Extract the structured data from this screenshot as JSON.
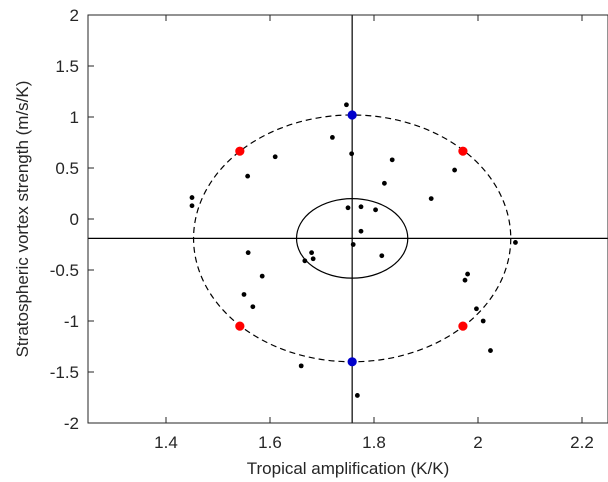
{
  "chart_data": {
    "type": "scatter",
    "title": "",
    "xlabel": "Tropical amplification (K/K)",
    "ylabel": "Stratospheric vortex strength (m/s/K)",
    "xlim": [
      1.25,
      2.25
    ],
    "ylim": [
      -2,
      2
    ],
    "xticks": [
      1.4,
      1.6,
      1.8,
      2,
      2.2
    ],
    "xtick_labels": [
      "1.4",
      "1.6",
      "1.8",
      "2",
      "2.2"
    ],
    "yticks": [
      -2,
      -1.5,
      -1,
      -0.5,
      0,
      0.5,
      1,
      1.5,
      2
    ],
    "ytick_labels": [
      "-2",
      "-1.5",
      "-1",
      "-0.5",
      "0",
      "0.5",
      "1",
      "1.5",
      "2"
    ],
    "grid": false,
    "colors": {
      "models": "#000000",
      "red_markers": "#ff0000",
      "blue_markers": "#0000cc",
      "axes": "#262626"
    },
    "center": {
      "x": 1.758,
      "y": -0.19
    },
    "inner_ellipse": {
      "cx": 1.758,
      "cy": -0.19,
      "rx": 0.107,
      "ry": 0.39
    },
    "outer_ellipse": {
      "cx": 1.758,
      "cy": -0.19,
      "rx": 0.305,
      "ry": 1.21,
      "dashed": true
    },
    "models": [
      {
        "x": 1.45,
        "y": 0.21
      },
      {
        "x": 1.45,
        "y": 0.13
      },
      {
        "x": 1.557,
        "y": 0.42
      },
      {
        "x": 1.61,
        "y": 0.61
      },
      {
        "x": 1.72,
        "y": 0.8
      },
      {
        "x": 1.747,
        "y": 1.12
      },
      {
        "x": 1.757,
        "y": 0.64
      },
      {
        "x": 1.835,
        "y": 0.58
      },
      {
        "x": 1.82,
        "y": 0.35
      },
      {
        "x": 1.955,
        "y": 0.48
      },
      {
        "x": 1.91,
        "y": 0.2
      },
      {
        "x": 1.75,
        "y": 0.11
      },
      {
        "x": 1.775,
        "y": 0.12
      },
      {
        "x": 1.803,
        "y": 0.09
      },
      {
        "x": 1.775,
        "y": -0.12
      },
      {
        "x": 1.76,
        "y": -0.25
      },
      {
        "x": 1.815,
        "y": -0.36
      },
      {
        "x": 1.68,
        "y": -0.33
      },
      {
        "x": 1.683,
        "y": -0.39
      },
      {
        "x": 1.667,
        "y": -0.41
      },
      {
        "x": 1.558,
        "y": -0.33
      },
      {
        "x": 1.585,
        "y": -0.56
      },
      {
        "x": 1.55,
        "y": -0.74
      },
      {
        "x": 1.567,
        "y": -0.86
      },
      {
        "x": 1.66,
        "y": -1.44
      },
      {
        "x": 1.768,
        "y": -1.73
      },
      {
        "x": 1.98,
        "y": -0.54
      },
      {
        "x": 1.975,
        "y": -0.6
      },
      {
        "x": 1.997,
        "y": -0.88
      },
      {
        "x": 2.01,
        "y": -1.0
      },
      {
        "x": 2.024,
        "y": -1.29
      },
      {
        "x": 2.072,
        "y": -0.23
      }
    ],
    "red_markers": [
      {
        "x": 1.542,
        "y": 0.665
      },
      {
        "x": 1.971,
        "y": 0.665
      },
      {
        "x": 1.542,
        "y": -1.05
      },
      {
        "x": 1.971,
        "y": -1.05
      }
    ],
    "blue_markers": [
      {
        "x": 1.758,
        "y": 1.02
      },
      {
        "x": 1.758,
        "y": -1.4
      }
    ]
  }
}
